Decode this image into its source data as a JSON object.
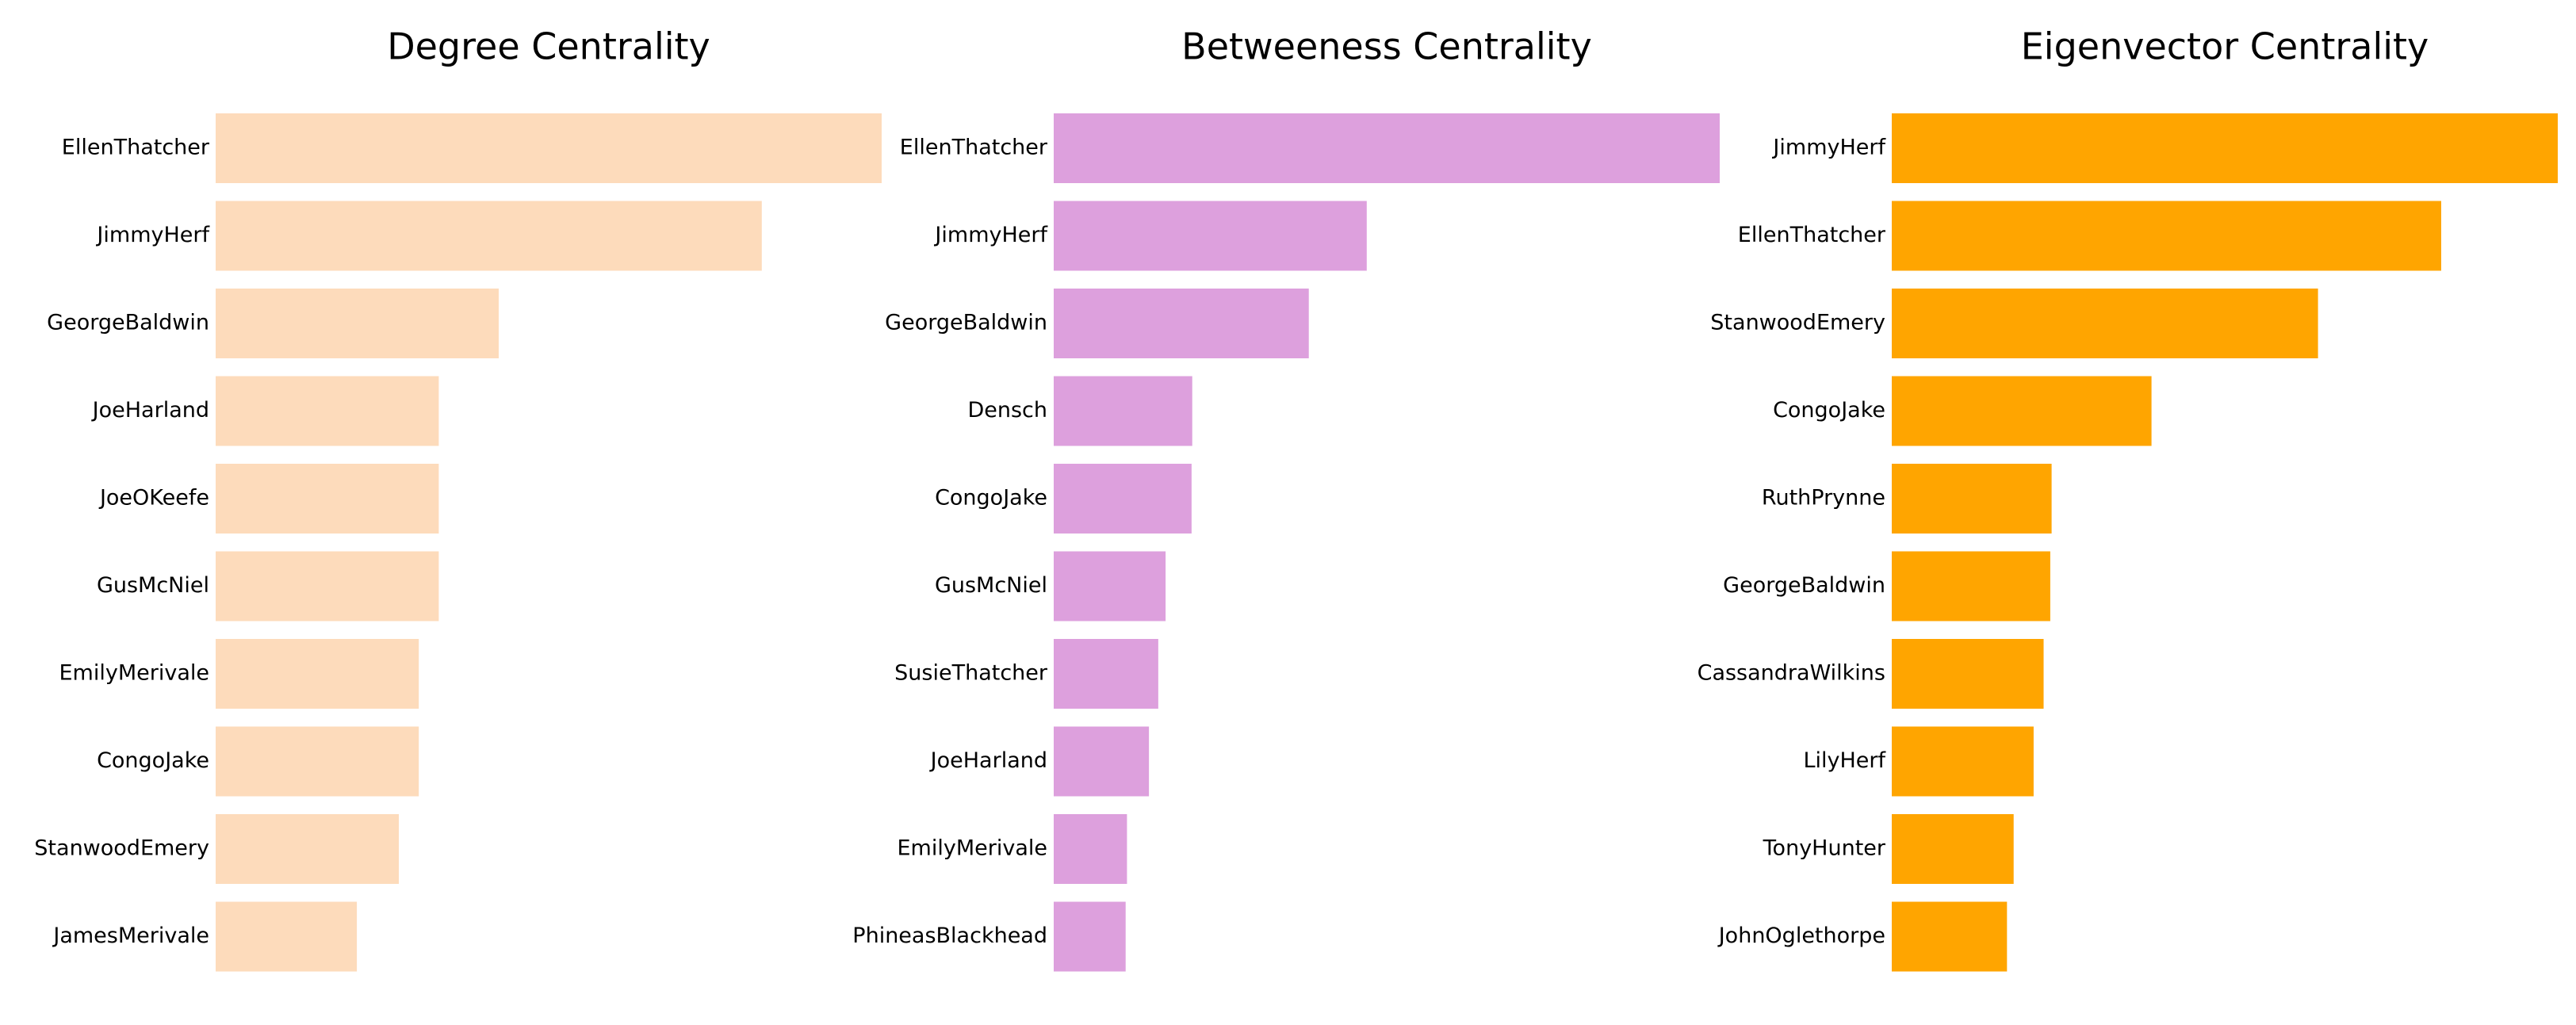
{
  "chart_data": [
    {
      "type": "bar",
      "orientation": "horizontal",
      "title": "Degree Centrality",
      "color": "#FDDBBB",
      "categories": [
        "EllenThatcher",
        "JimmyHerf",
        "GeorgeBaldwin",
        "JoeHarland",
        "JoeOKeefe",
        "GusMcNiel",
        "EmilyMerivale",
        "CongoJake",
        "StanwoodEmery",
        "JamesMerivale"
      ],
      "values": [
        1.0,
        0.82,
        0.425,
        0.335,
        0.335,
        0.335,
        0.305,
        0.305,
        0.275,
        0.212
      ],
      "axes_visible": false,
      "grid": false
    },
    {
      "type": "bar",
      "orientation": "horizontal",
      "title": "Betweeness Centrality",
      "color": "#DDA0DD",
      "categories": [
        "EllenThatcher",
        "JimmyHerf",
        "GeorgeBaldwin",
        "Densch",
        "CongoJake",
        "GusMcNiel",
        "SusieThatcher",
        "JoeHarland",
        "EmilyMerivale",
        "PhineasBlackhead"
      ],
      "values": [
        1.0,
        0.47,
        0.383,
        0.208,
        0.207,
        0.168,
        0.157,
        0.143,
        0.11,
        0.108
      ],
      "axes_visible": false,
      "grid": false
    },
    {
      "type": "bar",
      "orientation": "horizontal",
      "title": "Eigenvector Centrality",
      "color": "#FFA500",
      "categories": [
        "JimmyHerf",
        "EllenThatcher",
        "StanwoodEmery",
        "CongoJake",
        "RuthPrynne",
        "GeorgeBaldwin",
        "CassandraWilkins",
        "LilyHerf",
        "TonyHunter",
        "JohnOglethorpe"
      ],
      "values": [
        1.0,
        0.825,
        0.64,
        0.39,
        0.24,
        0.238,
        0.228,
        0.213,
        0.183,
        0.173
      ],
      "axes_visible": false,
      "grid": false
    }
  ]
}
